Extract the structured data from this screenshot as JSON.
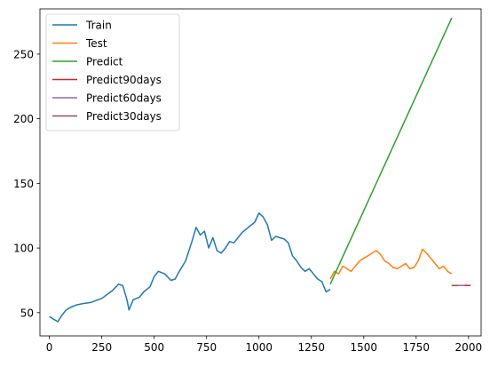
{
  "chart_data": {
    "type": "line",
    "title": "",
    "xlabel": "",
    "ylabel": "",
    "xlim": [
      -45,
      2060
    ],
    "ylim": [
      32,
      285
    ],
    "x_ticks": [
      0,
      250,
      500,
      750,
      1000,
      1250,
      1500,
      1750,
      2000
    ],
    "x_tick_labels": [
      "0",
      "250",
      "500",
      "750",
      "1000",
      "1250",
      "1500",
      "1750",
      "2000"
    ],
    "y_ticks": [
      50,
      100,
      150,
      200,
      250
    ],
    "y_tick_labels": [
      "50",
      "100",
      "150",
      "200",
      "250"
    ],
    "grid": false,
    "legend_position": "top-left",
    "series": [
      {
        "name": "Train",
        "color": "#1f77b4",
        "x": [
          0,
          20,
          40,
          60,
          80,
          100,
          130,
          160,
          200,
          250,
          300,
          330,
          350,
          370,
          380,
          400,
          430,
          450,
          480,
          500,
          520,
          550,
          580,
          600,
          620,
          650,
          680,
          700,
          720,
          740,
          760,
          780,
          800,
          820,
          840,
          860,
          880,
          900,
          920,
          950,
          980,
          1000,
          1020,
          1040,
          1060,
          1080,
          1100,
          1120,
          1140,
          1160,
          1180,
          1200,
          1220,
          1240,
          1260,
          1280,
          1300,
          1320,
          1340
        ],
        "y": [
          47,
          45,
          43,
          48,
          52,
          54,
          56,
          57,
          58,
          61,
          67,
          72,
          71,
          60,
          52,
          60,
          62,
          66,
          70,
          78,
          82,
          80,
          75,
          76,
          82,
          90,
          105,
          116,
          110,
          113,
          100,
          108,
          98,
          96,
          100,
          105,
          104,
          108,
          112,
          116,
          120,
          127,
          124,
          118,
          106,
          109,
          108,
          107,
          104,
          94,
          90,
          85,
          82,
          84,
          80,
          76,
          74,
          66,
          68
        ]
      },
      {
        "name": "Test",
        "color": "#ff7f0e",
        "x": [
          1340,
          1360,
          1380,
          1400,
          1420,
          1440,
          1460,
          1480,
          1500,
          1520,
          1540,
          1560,
          1580,
          1600,
          1620,
          1640,
          1660,
          1680,
          1700,
          1720,
          1740,
          1760,
          1780,
          1800,
          1820,
          1840,
          1860,
          1880,
          1900,
          1920
        ],
        "y": [
          76,
          82,
          80,
          86,
          84,
          82,
          86,
          90,
          92,
          94,
          96,
          98,
          95,
          90,
          88,
          85,
          84,
          86,
          88,
          84,
          85,
          90,
          99,
          96,
          92,
          88,
          84,
          86,
          82,
          80
        ]
      },
      {
        "name": "Predict",
        "color": "#2ca02c",
        "x": [
          1340,
          1920
        ],
        "y": [
          72,
          278
        ]
      },
      {
        "name": "Predict90days",
        "color": "#d62728",
        "x": [
          1920,
          2010
        ],
        "y": [
          71,
          71
        ]
      },
      {
        "name": "Predict60days",
        "color": "#9467bd",
        "x": [
          1920,
          1980
        ],
        "y": [
          71,
          71
        ]
      },
      {
        "name": "Predict30days",
        "color": "#8c564b",
        "x": [
          1920,
          1950
        ],
        "y": [
          71,
          71
        ]
      }
    ]
  }
}
